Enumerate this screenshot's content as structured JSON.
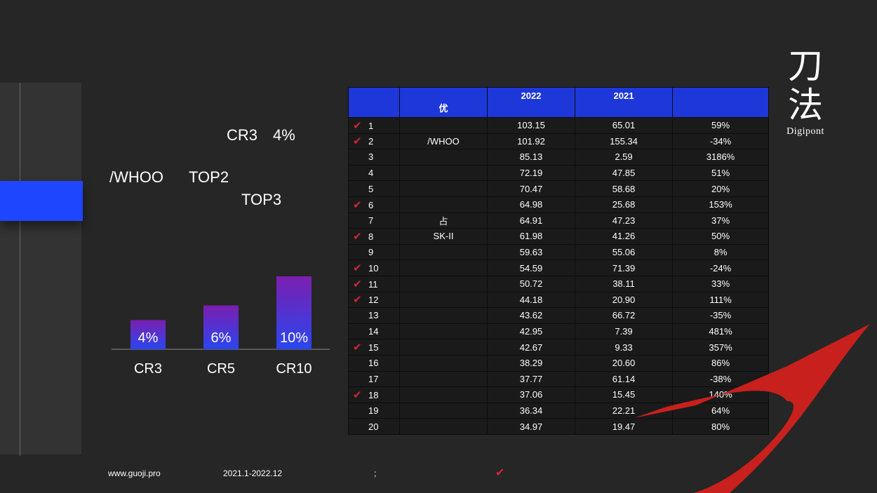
{
  "headlines": {
    "cr3_line": "CR3　4%",
    "whoo": "/WHOO",
    "top2": "TOP2",
    "top3": "TOP3"
  },
  "chart_data": {
    "type": "bar",
    "categories": [
      "CR3",
      "CR5",
      "CR10"
    ],
    "values": [
      4,
      6,
      10
    ],
    "value_labels": [
      "4%",
      "6%",
      "10%"
    ],
    "ylim": [
      0,
      10.5
    ],
    "grid": false,
    "legend": "none",
    "title": "",
    "xlabel": "",
    "ylabel": "",
    "bar_gradient": [
      "#7b1fb0",
      "#2a46f0"
    ]
  },
  "table": {
    "columns": [
      "",
      "优",
      "2022",
      "2021",
      ""
    ],
    "rows": [
      {
        "rank": "1",
        "checked": true,
        "brand": "",
        "v2022": "103.15",
        "v2021": "65.01",
        "growth": "59%"
      },
      {
        "rank": "2",
        "checked": true,
        "brand": "/WHOO",
        "v2022": "101.92",
        "v2021": "155.34",
        "growth": "-34%"
      },
      {
        "rank": "3",
        "checked": false,
        "brand": "",
        "v2022": "85.13",
        "v2021": "2.59",
        "growth": "3186%"
      },
      {
        "rank": "4",
        "checked": false,
        "brand": "",
        "v2022": "72.19",
        "v2021": "47.85",
        "growth": "51%"
      },
      {
        "rank": "5",
        "checked": false,
        "brand": "",
        "v2022": "70.47",
        "v2021": "58.68",
        "growth": "20%"
      },
      {
        "rank": "6",
        "checked": true,
        "brand": "",
        "v2022": "64.98",
        "v2021": "25.68",
        "growth": "153%"
      },
      {
        "rank": "7",
        "checked": false,
        "brand": "占",
        "v2022": "64.91",
        "v2021": "47.23",
        "growth": "37%"
      },
      {
        "rank": "8",
        "checked": true,
        "brand": "SK-II",
        "v2022": "61.98",
        "v2021": "41.26",
        "growth": "50%"
      },
      {
        "rank": "9",
        "checked": false,
        "brand": "",
        "v2022": "59.63",
        "v2021": "55.06",
        "growth": "8%"
      },
      {
        "rank": "10",
        "checked": true,
        "brand": "",
        "v2022": "54.59",
        "v2021": "71.39",
        "growth": "-24%"
      },
      {
        "rank": "11",
        "checked": true,
        "brand": "",
        "v2022": "50.72",
        "v2021": "38.11",
        "growth": "33%"
      },
      {
        "rank": "12",
        "checked": true,
        "brand": "",
        "v2022": "44.18",
        "v2021": "20.90",
        "growth": "111%"
      },
      {
        "rank": "13",
        "checked": false,
        "brand": "",
        "v2022": "43.62",
        "v2021": "66.72",
        "growth": "-35%"
      },
      {
        "rank": "14",
        "checked": false,
        "brand": "",
        "v2022": "42.95",
        "v2021": "7.39",
        "growth": "481%"
      },
      {
        "rank": "15",
        "checked": true,
        "brand": "",
        "v2022": "42.67",
        "v2021": "9.33",
        "growth": "357%"
      },
      {
        "rank": "16",
        "checked": false,
        "brand": "",
        "v2022": "38.29",
        "v2021": "20.60",
        "growth": "86%"
      },
      {
        "rank": "17",
        "checked": false,
        "brand": "",
        "v2022": "37.77",
        "v2021": "61.14",
        "growth": "-38%"
      },
      {
        "rank": "18",
        "checked": true,
        "brand": "",
        "v2022": "37.06",
        "v2021": "15.45",
        "growth": "140%"
      },
      {
        "rank": "19",
        "checked": false,
        "brand": "",
        "v2022": "36.34",
        "v2021": "22.21",
        "growth": "64%"
      },
      {
        "rank": "20",
        "checked": false,
        "brand": "",
        "v2022": "34.97",
        "v2021": "19.47",
        "growth": "80%"
      }
    ]
  },
  "logo": {
    "chinese": [
      "刀",
      "法"
    ],
    "english": "Digipont"
  },
  "footer": {
    "website": "www.guoji.pro",
    "date_range": "2021.1-2022.12",
    "separator": ";"
  },
  "colors": {
    "background": "#262626",
    "accent_blue": "#1f46ff",
    "header_blue": "#1e37d8",
    "check_red": "#d42530",
    "swoosh_red": "#c8201c"
  },
  "icons": {
    "check": "check-icon",
    "swoosh": "swoosh-graphic"
  }
}
